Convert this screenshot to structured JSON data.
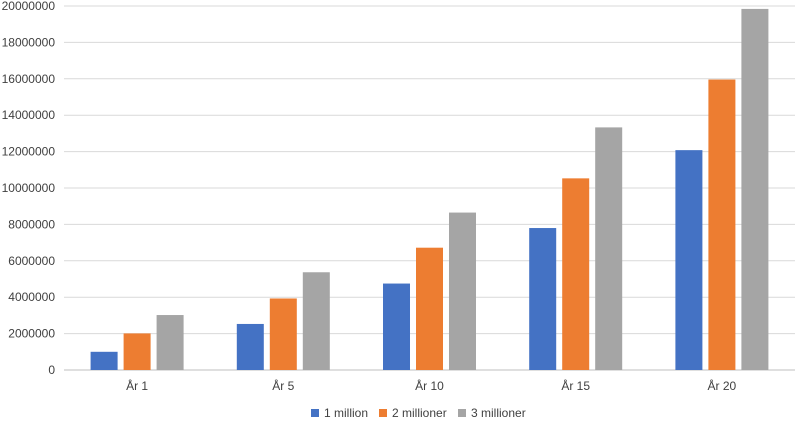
{
  "chart_data": {
    "type": "bar",
    "categories": [
      "År 1",
      "År 5",
      "År 10",
      "År 15",
      "År 20"
    ],
    "series": [
      {
        "name": "1 million",
        "color": "#4472C4",
        "values": [
          1000000,
          2530000,
          4750000,
          7800000,
          12080000
        ]
      },
      {
        "name": "2 millioner",
        "color": "#ED7D31",
        "values": [
          2010000,
          3930000,
          6720000,
          10530000,
          15960000
        ]
      },
      {
        "name": "3 millioner",
        "color": "#A5A5A5",
        "values": [
          3020000,
          5370000,
          8650000,
          13330000,
          19840000
        ]
      }
    ],
    "y_ticks": [
      "0",
      "2000000",
      "4000000",
      "6000000",
      "8000000",
      "10000000",
      "12000000",
      "14000000",
      "16000000",
      "18000000",
      "20000000"
    ],
    "ylim": [
      0,
      20000000
    ],
    "grid": true,
    "legend_position": "bottom"
  }
}
